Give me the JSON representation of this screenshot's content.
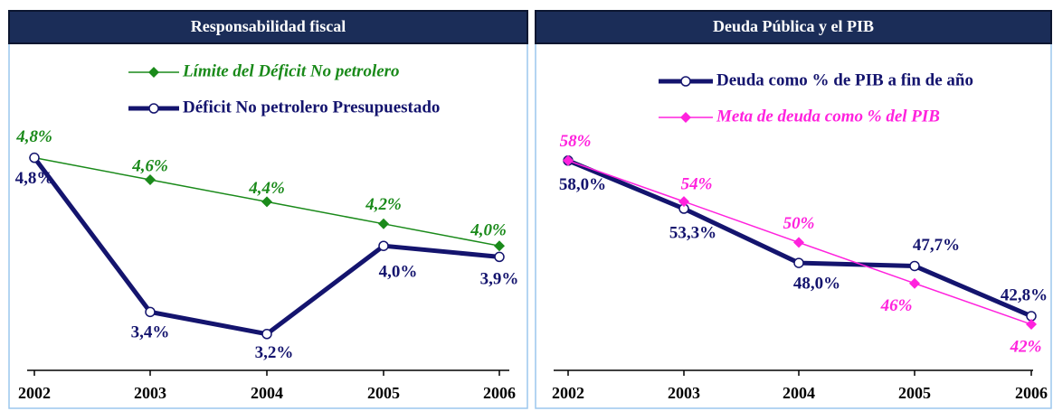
{
  "chart_data": [
    {
      "type": "line",
      "title": "Responsabilidad fiscal",
      "categories": [
        "2002",
        "2003",
        "2004",
        "2005",
        "2006"
      ],
      "ylim": [
        2.87,
        5.74
      ],
      "series": [
        {
          "name": "Límite del Déficit No petrolero",
          "color": "#1a8a1a",
          "marker": "diamond",
          "italic": true,
          "values": [
            4.8,
            4.6,
            4.4,
            4.2,
            4.0
          ],
          "value_labels": [
            "4,8%",
            "4,6%",
            "4,4%",
            "4,2%",
            "4,0%"
          ]
        },
        {
          "name": "Déficit No petrolero Presupuestado",
          "color": "#14146e",
          "marker": "circle",
          "italic": false,
          "values": [
            4.8,
            3.4,
            3.2,
            4.0,
            3.9
          ],
          "value_labels": [
            "4,8%",
            "3,4%",
            "3,2%",
            "4,0%",
            "3,9%"
          ]
        }
      ]
    },
    {
      "type": "line",
      "title": "Deuda Pública y el PIB",
      "categories": [
        "2002",
        "2003",
        "2004",
        "2005",
        "2006"
      ],
      "ylim": [
        37.5,
        68.4
      ],
      "series": [
        {
          "name": "Deuda como % de PIB a fin de año",
          "color": "#14146e",
          "marker": "circle",
          "italic": false,
          "values": [
            58.0,
            53.3,
            48.0,
            47.7,
            42.8
          ],
          "value_labels": [
            "58,0%",
            "53,3%",
            "48,0%",
            "47,7%",
            "42,8%"
          ]
        },
        {
          "name": "Meta de deuda como % del PIB",
          "color": "#ff22dd",
          "marker": "diamond",
          "italic": true,
          "values": [
            58,
            54,
            50,
            46,
            42
          ],
          "value_labels": [
            "58%",
            "54%",
            "50%",
            "46%",
            "42%"
          ]
        }
      ]
    }
  ]
}
